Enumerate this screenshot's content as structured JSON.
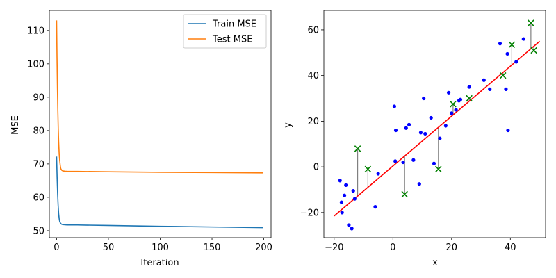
{
  "chart_data": [
    {
      "type": "line",
      "title": "",
      "xlabel": "Iteration",
      "ylabel": "MSE",
      "xlim": [
        -7,
        207
      ],
      "ylim": [
        47.9,
        116
      ],
      "xticks": [
        0,
        50,
        100,
        150,
        200
      ],
      "yticks": [
        50,
        60,
        70,
        80,
        90,
        100,
        110
      ],
      "legend_position": "upper right",
      "series": [
        {
          "name": "Train MSE",
          "color": "#1f77b4",
          "x": [
            0,
            0.5,
            1,
            1.5,
            2,
            2.5,
            3,
            4,
            5,
            6,
            8,
            10,
            20,
            50,
            100,
            150,
            199
          ],
          "values": [
            72.2,
            66.0,
            61.0,
            57.5,
            55.0,
            53.6,
            52.7,
            52.1,
            51.9,
            51.8,
            51.75,
            51.72,
            51.7,
            51.55,
            51.3,
            51.1,
            50.9
          ]
        },
        {
          "name": "Test MSE",
          "color": "#ff7f0e",
          "x": [
            0,
            0.4,
            0.8,
            1.2,
            1.6,
            2,
            2.5,
            3,
            3.5,
            4,
            5,
            6,
            8,
            10,
            20,
            50,
            100,
            150,
            199
          ],
          "values": [
            113,
            102,
            93,
            86,
            80.5,
            76.5,
            73,
            71,
            69.6,
            68.6,
            68.1,
            67.9,
            67.8,
            67.78,
            67.75,
            67.65,
            67.5,
            67.4,
            67.3
          ]
        }
      ]
    },
    {
      "type": "scatter",
      "title": "",
      "xlabel": "x",
      "ylabel": "y",
      "xlim": [
        -23.5,
        52
      ],
      "ylim": [
        -31,
        68.5
      ],
      "xticks": [
        -20,
        0,
        20,
        40
      ],
      "yticks": [
        -20,
        0,
        20,
        40,
        60
      ],
      "train_color": "#0000ff",
      "test_color": "#008000",
      "fit_color": "#ff0000",
      "residual_color": "#808080",
      "fit_line": {
        "x": [
          -20,
          50
        ],
        "y": [
          -21.5,
          55
        ]
      },
      "train_points": [
        [
          -18,
          -6
        ],
        [
          -17.5,
          -15.5
        ],
        [
          -17.3,
          -20
        ],
        [
          -16.5,
          -12.5
        ],
        [
          -16,
          -8
        ],
        [
          -15,
          -25.5
        ],
        [
          -14,
          -27
        ],
        [
          -13.5,
          -10.5
        ],
        [
          -13,
          -14
        ],
        [
          -6,
          -17.5
        ],
        [
          -5,
          -3
        ],
        [
          0.5,
          26.5
        ],
        [
          0.8,
          2.5
        ],
        [
          1,
          16
        ],
        [
          3.5,
          2
        ],
        [
          4.5,
          17
        ],
        [
          5.5,
          18.5
        ],
        [
          7,
          3
        ],
        [
          9,
          -7.5
        ],
        [
          9.5,
          15
        ],
        [
          10.5,
          30
        ],
        [
          11,
          14.5
        ],
        [
          13,
          21.5
        ],
        [
          14,
          1.5
        ],
        [
          16,
          12.5
        ],
        [
          18,
          18
        ],
        [
          19,
          32.5
        ],
        [
          20,
          23.5
        ],
        [
          21.5,
          25
        ],
        [
          22.5,
          29
        ],
        [
          23,
          29.5
        ],
        [
          26,
          35
        ],
        [
          31,
          38
        ],
        [
          33,
          34
        ],
        [
          36.5,
          54
        ],
        [
          38.5,
          34
        ],
        [
          39,
          49.5
        ],
        [
          39.2,
          16
        ],
        [
          42,
          46
        ],
        [
          44.5,
          56
        ]
      ],
      "test_points": [
        [
          -12,
          8
        ],
        [
          -8.5,
          -1
        ],
        [
          4,
          -12
        ],
        [
          15.5,
          -1
        ],
        [
          20.5,
          27.5
        ],
        [
          26,
          30
        ],
        [
          37.5,
          40
        ],
        [
          40.5,
          53.5
        ],
        [
          47,
          63
        ],
        [
          48,
          51
        ]
      ]
    }
  ]
}
